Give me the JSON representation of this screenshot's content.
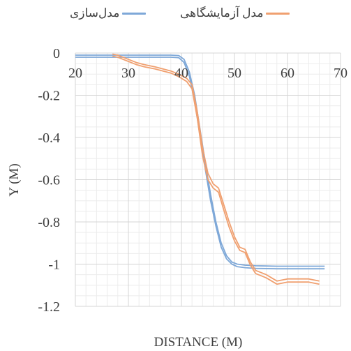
{
  "chart_data": {
    "type": "line",
    "title": "",
    "xlabel": "DISTANCE (M)",
    "ylabel": "Y (M)",
    "xlim": [
      20,
      70
    ],
    "ylim": [
      -1.2,
      0
    ],
    "x_ticks": [
      "20",
      "30",
      "40",
      "50",
      "60",
      "70"
    ],
    "y_ticks": [
      "0",
      "-0.2",
      "-0.4",
      "-0.6",
      "-0.8",
      "-1",
      "-1.2"
    ],
    "grid": true,
    "legend_position": "top",
    "series": [
      {
        "name": "مدل‌سازی",
        "color": "#7ea8d8",
        "x": [
          20,
          25,
          30,
          35,
          38,
          39.5,
          40.5,
          41.5,
          42.5,
          43.5,
          44.5,
          45.5,
          46.5,
          47.5,
          48.5,
          49.5,
          50.5,
          52,
          54,
          58,
          62,
          67
        ],
        "y": [
          -0.01,
          -0.01,
          -0.01,
          -0.01,
          -0.01,
          -0.012,
          -0.03,
          -0.09,
          -0.2,
          -0.36,
          -0.52,
          -0.67,
          -0.8,
          -0.9,
          -0.96,
          -0.99,
          -1.0,
          -1.005,
          -1.008,
          -1.01,
          -1.01,
          -1.01
        ]
      },
      {
        "name": "مدل‌سازی",
        "color": "#7ea8d8",
        "x": [
          20,
          25,
          30,
          35,
          38,
          39.5,
          40.5,
          41.5,
          42.5,
          43.5,
          44.5,
          45.5,
          46.5,
          47.5,
          48.5,
          49.5,
          50.5,
          52,
          54,
          58,
          62,
          67
        ],
        "y": [
          -0.02,
          -0.02,
          -0.02,
          -0.02,
          -0.02,
          -0.022,
          -0.045,
          -0.11,
          -0.23,
          -0.39,
          -0.55,
          -0.7,
          -0.82,
          -0.92,
          -0.975,
          -1.0,
          -1.012,
          -1.017,
          -1.02,
          -1.022,
          -1.022,
          -1.022
        ]
      },
      {
        "name": "مدل آزمایشگاهی",
        "color": "#f0a070",
        "x": [
          27,
          28,
          30,
          31.5,
          33,
          35,
          36.5,
          38,
          39.5,
          41,
          42,
          43,
          44,
          45,
          46,
          47,
          48,
          49,
          50,
          51,
          52,
          53,
          54,
          55,
          56,
          57,
          58,
          59,
          60,
          61,
          62,
          63,
          64,
          66
        ],
        "y": [
          -0.005,
          -0.01,
          -0.03,
          -0.045,
          -0.055,
          -0.065,
          -0.075,
          -0.085,
          -0.1,
          -0.12,
          -0.15,
          -0.28,
          -0.45,
          -0.57,
          -0.62,
          -0.64,
          -0.72,
          -0.8,
          -0.87,
          -0.92,
          -0.93,
          -0.99,
          -1.03,
          -1.04,
          -1.05,
          -1.065,
          -1.08,
          -1.075,
          -1.07,
          -1.07,
          -1.07,
          -1.07,
          -1.07,
          -1.08
        ]
      },
      {
        "name": "مدل آزمایشگاهی",
        "color": "#f0a070",
        "x": [
          27,
          28,
          30,
          31.5,
          33,
          35,
          36.5,
          38,
          39.5,
          41,
          42,
          43,
          44,
          45,
          46,
          47,
          48,
          49,
          50,
          51,
          52,
          53,
          54,
          55,
          56,
          57,
          58,
          59,
          60,
          61,
          62,
          63,
          64,
          66
        ],
        "y": [
          -0.015,
          -0.02,
          -0.04,
          -0.055,
          -0.065,
          -0.075,
          -0.085,
          -0.095,
          -0.112,
          -0.135,
          -0.17,
          -0.31,
          -0.49,
          -0.6,
          -0.64,
          -0.66,
          -0.745,
          -0.825,
          -0.89,
          -0.935,
          -0.945,
          -1.005,
          -1.045,
          -1.055,
          -1.065,
          -1.08,
          -1.095,
          -1.09,
          -1.085,
          -1.085,
          -1.085,
          -1.085,
          -1.085,
          -1.095
        ]
      }
    ],
    "legend": [
      {
        "label": "مدل آزمایشگاهی",
        "color": "#f0a070"
      },
      {
        "label": "مدل‌سازی",
        "color": "#7ea8d8"
      }
    ]
  }
}
